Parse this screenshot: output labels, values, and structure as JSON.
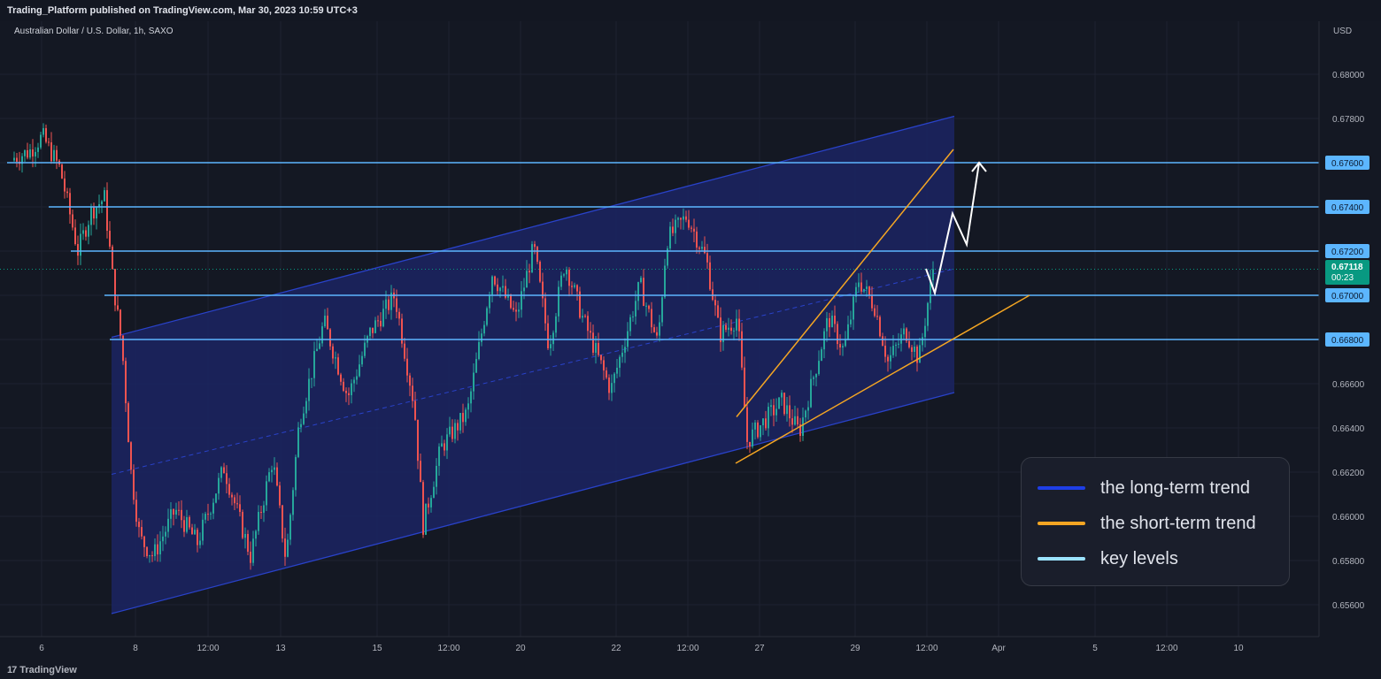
{
  "header": {
    "published": "Trading_Platform published on TradingView.com, Mar 30, 2023 10:59 UTC+3"
  },
  "symbol": {
    "title": "Australian Dollar / U.S. Dollar, 1h, SAXO"
  },
  "currency": "USD",
  "current_price": {
    "value": "0.67118",
    "countdown": "00:23"
  },
  "legend": {
    "items": [
      {
        "label": "the long-term trend",
        "color": "#1e3ee6"
      },
      {
        "label": "the short-term trend",
        "color": "#f5a623"
      },
      {
        "label": "key levels",
        "color": "#9be3ff"
      }
    ]
  },
  "footer": {
    "brand": "TradingView",
    "mark": "17"
  },
  "colors": {
    "up_candle": "#26a69a",
    "down_candle": "#ef5350",
    "channel_line": "#2942c9",
    "channel_fill": "#1b2463",
    "key_level": "#5cb6ff",
    "short_trend": "#f5a623",
    "projection": "#ffffff",
    "price_tag": "#089981"
  },
  "chart_data": {
    "type": "candlestick",
    "title": "Australian Dollar / U.S. Dollar, 1h, SAXO",
    "ylabel": "USD",
    "ylim": [
      0.6552,
      0.6826
    ],
    "y_ticks": [
      "0.65600",
      "0.65800",
      "0.66000",
      "0.66200",
      "0.66400",
      "0.66600",
      "0.66800",
      "0.67000",
      "0.67200",
      "0.67400",
      "0.67600",
      "0.67800",
      "0.68000"
    ],
    "x_ticks": [
      "6",
      "8",
      "12:00",
      "13",
      "15",
      "12:00",
      "20",
      "22",
      "12:00",
      "27",
      "29",
      "12:00",
      "Apr",
      "5",
      "12:00",
      "10"
    ],
    "key_levels": [
      "0.67600",
      "0.67400",
      "0.67200",
      "0.67000",
      "0.66800"
    ],
    "price_path": [
      {
        "t": 0,
        "p": 0.6761
      },
      {
        "t": 25,
        "p": 0.6765
      },
      {
        "t": 40,
        "p": 0.6772
      },
      {
        "t": 60,
        "p": 0.6757
      },
      {
        "t": 80,
        "p": 0.672
      },
      {
        "t": 95,
        "p": 0.6738
      },
      {
        "t": 110,
        "p": 0.6744
      },
      {
        "t": 120,
        "p": 0.6705
      },
      {
        "t": 130,
        "p": 0.6676
      },
      {
        "t": 140,
        "p": 0.662
      },
      {
        "t": 150,
        "p": 0.659
      },
      {
        "t": 165,
        "p": 0.6582
      },
      {
        "t": 190,
        "p": 0.6603
      },
      {
        "t": 215,
        "p": 0.6588
      },
      {
        "t": 245,
        "p": 0.6622
      },
      {
        "t": 275,
        "p": 0.6582
      },
      {
        "t": 300,
        "p": 0.6626
      },
      {
        "t": 315,
        "p": 0.658
      },
      {
        "t": 330,
        "p": 0.6643
      },
      {
        "t": 358,
        "p": 0.6688
      },
      {
        "t": 385,
        "p": 0.6654
      },
      {
        "t": 410,
        "p": 0.6683
      },
      {
        "t": 438,
        "p": 0.67
      },
      {
        "t": 460,
        "p": 0.665
      },
      {
        "t": 470,
        "p": 0.6596
      },
      {
        "t": 490,
        "p": 0.6631
      },
      {
        "t": 520,
        "p": 0.6647
      },
      {
        "t": 548,
        "p": 0.671
      },
      {
        "t": 575,
        "p": 0.669
      },
      {
        "t": 595,
        "p": 0.6722
      },
      {
        "t": 612,
        "p": 0.6677
      },
      {
        "t": 630,
        "p": 0.6715
      },
      {
        "t": 650,
        "p": 0.669
      },
      {
        "t": 682,
        "p": 0.6657
      },
      {
        "t": 715,
        "p": 0.6705
      },
      {
        "t": 735,
        "p": 0.6678
      },
      {
        "t": 745,
        "p": 0.6725
      },
      {
        "t": 768,
        "p": 0.6736
      },
      {
        "t": 790,
        "p": 0.6716
      },
      {
        "t": 805,
        "p": 0.6682
      },
      {
        "t": 825,
        "p": 0.669
      },
      {
        "t": 836,
        "p": 0.6634
      },
      {
        "t": 855,
        "p": 0.6643
      },
      {
        "t": 875,
        "p": 0.6652
      },
      {
        "t": 895,
        "p": 0.6638
      },
      {
        "t": 928,
        "p": 0.669
      },
      {
        "t": 945,
        "p": 0.6675
      },
      {
        "t": 962,
        "p": 0.6707
      },
      {
        "t": 980,
        "p": 0.6695
      },
      {
        "t": 995,
        "p": 0.667
      },
      {
        "t": 1015,
        "p": 0.6684
      },
      {
        "t": 1030,
        "p": 0.6671
      },
      {
        "t": 1046,
        "p": 0.6712
      }
    ],
    "long_term_channel": {
      "upper": [
        [
          0.6681,
          0.6781
        ]
      ],
      "lower": [
        [
          0.6556,
          0.6656
        ]
      ],
      "mid": [
        [
          0.6619,
          0.6712
        ]
      ]
    },
    "short_term_trend": {
      "upper": [
        0.6645,
        0.6766
      ],
      "lower": [
        0.6624,
        0.67
      ]
    },
    "projection": [
      0.6712,
      0.6701,
      0.6737,
      0.6723,
      0.676
    ]
  }
}
